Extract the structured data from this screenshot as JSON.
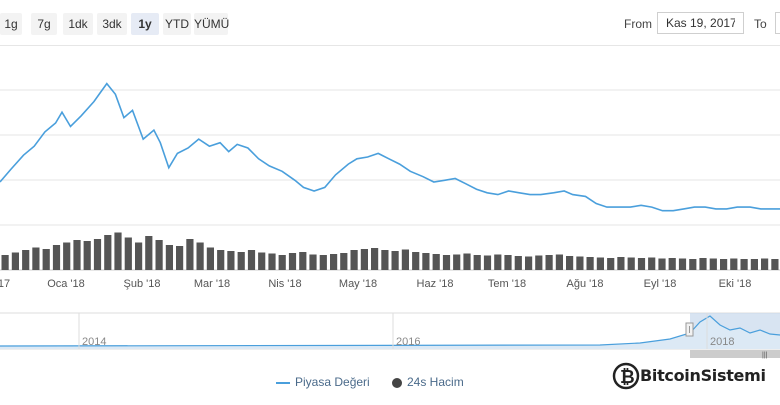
{
  "toolbar": {
    "range_buttons": [
      "1g",
      "7g",
      "1dk",
      "3dk",
      "1y",
      "YTD",
      "YÜMÜ"
    ],
    "active_range": "1y",
    "from_label": "From",
    "from_value": "Kas 19, 2017",
    "to_label": "To",
    "to_value": ""
  },
  "legend": {
    "market_cap_label": "Piyasa Değeri",
    "volume_label": "24s Hacim"
  },
  "brand": {
    "text": "BitcoinSistemi"
  },
  "colors": {
    "line": "#4a9fdc",
    "volume": "#555555",
    "navigator_fill": "#c8d9ec"
  },
  "chart_data": {
    "type": "line",
    "x_start": "2017-11-19",
    "x_end": "2018-11-19",
    "x_tick_labels": [
      "17",
      "Oca '18",
      "Şub '18",
      "Mar '18",
      "Nis '18",
      "May '18",
      "Haz '18",
      "Tem '18",
      "Ağu '18",
      "Eyl '18",
      "Eki '18"
    ],
    "series": [
      {
        "name": "Piyasa Değeri",
        "type": "line",
        "x": [
          "2017-11-19",
          "2017-11-24",
          "2017-11-30",
          "2017-12-05",
          "2017-12-10",
          "2017-12-15",
          "2017-12-18",
          "2017-12-22",
          "2017-12-27",
          "2018-01-02",
          "2018-01-05",
          "2018-01-08",
          "2018-01-12",
          "2018-01-16",
          "2018-01-20",
          "2018-01-25",
          "2018-01-30",
          "2018-02-02",
          "2018-02-06",
          "2018-02-10",
          "2018-02-15",
          "2018-02-20",
          "2018-02-25",
          "2018-03-02",
          "2018-03-06",
          "2018-03-10",
          "2018-03-15",
          "2018-03-20",
          "2018-03-25",
          "2018-03-31",
          "2018-04-06",
          "2018-04-10",
          "2018-04-15",
          "2018-04-20",
          "2018-04-25",
          "2018-05-01",
          "2018-05-05",
          "2018-05-10",
          "2018-05-15",
          "2018-05-20",
          "2018-05-25",
          "2018-05-30",
          "2018-06-05",
          "2018-06-10",
          "2018-06-15",
          "2018-06-20",
          "2018-06-25",
          "2018-06-30",
          "2018-07-05",
          "2018-07-10",
          "2018-07-15",
          "2018-07-20",
          "2018-07-25",
          "2018-07-30",
          "2018-08-05",
          "2018-08-10",
          "2018-08-14",
          "2018-08-20",
          "2018-08-25",
          "2018-08-30",
          "2018-09-05",
          "2018-09-10",
          "2018-09-15",
          "2018-09-20",
          "2018-09-25",
          "2018-09-30",
          "2018-10-05",
          "2018-10-10",
          "2018-10-15",
          "2018-10-20",
          "2018-10-25",
          "2018-10-30",
          "2018-11-05",
          "2018-11-10",
          "2018-11-15",
          "2018-11-19"
        ],
        "values": [
          0.24,
          0.31,
          0.39,
          0.44,
          0.52,
          0.57,
          0.63,
          0.55,
          0.61,
          0.69,
          0.74,
          0.79,
          0.73,
          0.6,
          0.64,
          0.48,
          0.53,
          0.46,
          0.32,
          0.4,
          0.43,
          0.48,
          0.44,
          0.46,
          0.41,
          0.45,
          0.43,
          0.37,
          0.33,
          0.3,
          0.25,
          0.21,
          0.19,
          0.21,
          0.28,
          0.34,
          0.37,
          0.38,
          0.4,
          0.37,
          0.34,
          0.3,
          0.27,
          0.24,
          0.25,
          0.26,
          0.23,
          0.2,
          0.18,
          0.17,
          0.19,
          0.18,
          0.17,
          0.17,
          0.18,
          0.19,
          0.17,
          0.16,
          0.12,
          0.1,
          0.1,
          0.1,
          0.11,
          0.1,
          0.08,
          0.08,
          0.09,
          0.1,
          0.1,
          0.09,
          0.09,
          0.1,
          0.1,
          0.09,
          0.09,
          0.09
        ]
      },
      {
        "name": "24s Hacim",
        "type": "bar",
        "values": [
          0.3,
          0.35,
          0.4,
          0.45,
          0.42,
          0.5,
          0.55,
          0.6,
          0.58,
          0.62,
          0.7,
          0.75,
          0.65,
          0.55,
          0.68,
          0.6,
          0.5,
          0.48,
          0.62,
          0.55,
          0.45,
          0.4,
          0.38,
          0.36,
          0.4,
          0.35,
          0.33,
          0.3,
          0.34,
          0.36,
          0.31,
          0.3,
          0.32,
          0.34,
          0.4,
          0.42,
          0.44,
          0.4,
          0.38,
          0.41,
          0.36,
          0.34,
          0.32,
          0.3,
          0.31,
          0.33,
          0.3,
          0.29,
          0.31,
          0.3,
          0.28,
          0.27,
          0.29,
          0.3,
          0.31,
          0.28,
          0.27,
          0.26,
          0.25,
          0.24,
          0.26,
          0.25,
          0.24,
          0.25,
          0.23,
          0.24,
          0.23,
          0.22,
          0.24,
          0.23,
          0.22,
          0.23,
          0.22,
          0.22,
          0.23,
          0.22
        ]
      }
    ],
    "navigator": {
      "labels": [
        "2014",
        "2016",
        "2018"
      ],
      "selected_from": "2017-11-19",
      "selected_to": "2018-11-19"
    },
    "grid": true,
    "legend_position": "bottom-center"
  }
}
